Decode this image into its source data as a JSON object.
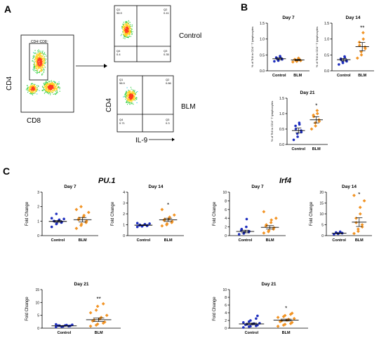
{
  "panel_labels": {
    "a": "A",
    "b": "B",
    "c": "C"
  },
  "flow": {
    "gate_label": "CD4⁺CD8⁻",
    "main_y": "CD4",
    "main_x": "CD8",
    "plot_y": "CD4",
    "plot_x": "IL-9",
    "control_label": "Control",
    "blm_label": "BLM",
    "control_quads": {
      "q1": "Q1",
      "q1v": "98.9",
      "q2": "Q2",
      "q2v": "0.41",
      "q4": "Q4",
      "q4v": "0.4",
      "q3": "Q3",
      "q3v": "0.35"
    },
    "blm_quads": {
      "q1": "Q1",
      "q1v": "98.9",
      "q2": "Q2",
      "q2v": "0.86",
      "q4": "Q4",
      "q4v": "0.71",
      "q3": "Q3",
      "q3v": "0.3"
    }
  },
  "section_c_titles": {
    "left": "PU.1",
    "right": "Irf4"
  },
  "chart_data": [
    {
      "id": "b1",
      "type": "scatter",
      "title": "Day 7",
      "ylabel": "% of Th9 in CD4⁺ T lymphocytes",
      "ylim": [
        0,
        1.5
      ],
      "yticks": [
        "0.0",
        "0.5",
        "1.0",
        "1.5"
      ],
      "categories": [
        "Control",
        "BLM"
      ],
      "series": [
        {
          "name": "Control",
          "values": [
            0.3,
            0.32,
            0.34,
            0.36,
            0.38,
            0.4,
            0.42,
            0.44,
            0.46
          ]
        },
        {
          "name": "BLM",
          "values": [
            0.28,
            0.3,
            0.3,
            0.32,
            0.33,
            0.35,
            0.36,
            0.38,
            0.4
          ]
        }
      ],
      "means": [
        0.38,
        0.34
      ],
      "sem": [
        0.03,
        0.02
      ],
      "significance": ""
    },
    {
      "id": "b2",
      "type": "scatter",
      "title": "Day 14",
      "ylabel": "% of Th9 in CD4⁺ T lymphocytes",
      "ylim": [
        0,
        1.5
      ],
      "yticks": [
        "0.0",
        "0.5",
        "1.0",
        "1.5"
      ],
      "categories": [
        "Control",
        "BLM"
      ],
      "series": [
        {
          "name": "Control",
          "values": [
            0.2,
            0.25,
            0.28,
            0.3,
            0.33,
            0.35,
            0.38,
            0.42,
            0.45
          ]
        },
        {
          "name": "BLM",
          "values": [
            0.4,
            0.5,
            0.6,
            0.7,
            0.75,
            0.8,
            0.9,
            1.0,
            1.2
          ]
        }
      ],
      "means": [
        0.35,
        0.76
      ],
      "sem": [
        0.04,
        0.13
      ],
      "significance": "**"
    },
    {
      "id": "b3",
      "type": "scatter",
      "title": "Day 21",
      "ylabel": "% of Th9 in CD4⁺ T lymphocytes",
      "ylim": [
        0,
        1.5
      ],
      "yticks": [
        "0.0",
        "0.5",
        "1.0",
        "1.5"
      ],
      "categories": [
        "Control",
        "BLM"
      ],
      "series": [
        {
          "name": "Control",
          "values": [
            0.15,
            0.25,
            0.35,
            0.4,
            0.45,
            0.5,
            0.6,
            0.65,
            0.7
          ]
        },
        {
          "name": "BLM",
          "values": [
            0.5,
            0.6,
            0.7,
            0.75,
            0.8,
            0.9,
            0.95,
            1.0,
            1.1
          ]
        }
      ],
      "means": [
        0.45,
        0.8
      ],
      "sem": [
        0.08,
        0.1
      ],
      "significance": "*"
    },
    {
      "id": "c1",
      "type": "scatter",
      "title": "Day 7",
      "ylabel": "Fold Change",
      "ylim": [
        0,
        3
      ],
      "yticks": [
        "0",
        "1",
        "2",
        "3"
      ],
      "categories": [
        "Control",
        "BLM"
      ],
      "series": [
        {
          "name": "Control",
          "values": [
            0.6,
            0.8,
            0.85,
            0.9,
            0.95,
            1.0,
            1.0,
            1.05,
            1.1,
            1.15,
            1.2,
            1.5
          ]
        },
        {
          "name": "BLM",
          "values": [
            0.5,
            0.7,
            0.8,
            0.9,
            1.0,
            1.1,
            1.2,
            1.3,
            1.4,
            1.6,
            1.8,
            2.0
          ]
        }
      ],
      "means": [
        0.98,
        1.1
      ],
      "sem": [
        0.06,
        0.15
      ],
      "significance": ""
    },
    {
      "id": "c2",
      "type": "scatter",
      "title": "Day 14",
      "ylabel": "Fold Change",
      "ylim": [
        0,
        4
      ],
      "yticks": [
        "0",
        "1",
        "2",
        "3",
        "4"
      ],
      "categories": [
        "Control",
        "BLM"
      ],
      "series": [
        {
          "name": "Control",
          "values": [
            0.8,
            0.85,
            0.9,
            0.9,
            0.95,
            0.95,
            1.0,
            1.0,
            1.05,
            1.1,
            1.15
          ]
        },
        {
          "name": "BLM",
          "values": [
            0.9,
            1.0,
            1.1,
            1.2,
            1.3,
            1.4,
            1.5,
            1.6,
            1.7,
            1.9,
            2.4
          ]
        }
      ],
      "means": [
        0.96,
        1.45
      ],
      "sem": [
        0.03,
        0.15
      ],
      "significance": "*"
    },
    {
      "id": "c3",
      "type": "scatter",
      "title": "Day 7",
      "ylabel": "Fold Change",
      "ylim": [
        0,
        10
      ],
      "yticks": [
        "0",
        "2",
        "4",
        "6",
        "8",
        "10"
      ],
      "categories": [
        "Control",
        "BLM"
      ],
      "series": [
        {
          "name": "Control",
          "values": [
            0.3,
            0.5,
            0.7,
            0.8,
            1.0,
            1.2,
            1.5,
            2.0,
            3.8
          ]
        },
        {
          "name": "BLM",
          "values": [
            0.6,
            0.9,
            1.2,
            1.5,
            1.8,
            2.2,
            2.5,
            3.0,
            3.6,
            4.0,
            5.5
          ]
        }
      ],
      "means": [
        0.95,
        1.9
      ],
      "sem": [
        0.3,
        0.4
      ],
      "significance": ""
    },
    {
      "id": "c4",
      "type": "scatter",
      "title": "Day 14",
      "ylabel": "Fold Change",
      "ylim": [
        0,
        20
      ],
      "yticks": [
        "0",
        "5",
        "10",
        "15",
        "20"
      ],
      "categories": [
        "Control",
        "BLM"
      ],
      "series": [
        {
          "name": "Control",
          "values": [
            0.6,
            0.8,
            1.0,
            1.1,
            1.2,
            1.3,
            1.5,
            1.8
          ]
        },
        {
          "name": "BLM",
          "values": [
            1.0,
            2.0,
            3.0,
            4.0,
            5.0,
            6.0,
            8.0,
            10.0,
            13.0,
            16.0,
            18.5
          ]
        }
      ],
      "means": [
        1.1,
        6.2
      ],
      "sem": [
        0.15,
        2.0
      ],
      "significance": "*"
    },
    {
      "id": "c5",
      "type": "scatter",
      "title": "Day 21",
      "ylabel": "Fold Change",
      "ylim": [
        0,
        15
      ],
      "yticks": [
        "0",
        "5",
        "10",
        "15"
      ],
      "categories": [
        "Control",
        "BLM"
      ],
      "series": [
        {
          "name": "Control",
          "values": [
            0.5,
            0.6,
            0.7,
            0.8,
            0.9,
            1.0,
            1.0,
            1.1,
            1.2,
            1.3,
            1.5
          ]
        },
        {
          "name": "BLM",
          "values": [
            0.8,
            1.2,
            1.6,
            2.0,
            2.4,
            2.8,
            3.2,
            3.6,
            4.2,
            5.0,
            6.0,
            7.0,
            8.5,
            9.5
          ]
        }
      ],
      "means": [
        0.9,
        3.3
      ],
      "sem": [
        0.1,
        0.7
      ],
      "significance": "**"
    },
    {
      "id": "c6",
      "type": "scatter",
      "title": "Day 21",
      "ylabel": "Fold Change",
      "ylim": [
        0,
        10
      ],
      "yticks": [
        "0",
        "2",
        "4",
        "6",
        "8",
        "10"
      ],
      "categories": [
        "Control",
        "BLM"
      ],
      "series": [
        {
          "name": "Control",
          "values": [
            0.2,
            0.4,
            0.5,
            0.6,
            0.8,
            0.9,
            1.0,
            1.1,
            1.2,
            1.3,
            1.5,
            1.7,
            2.0,
            2.5,
            3.2
          ]
        },
        {
          "name": "BLM",
          "values": [
            0.5,
            0.8,
            1.0,
            1.2,
            1.5,
            1.7,
            1.9,
            2.1,
            2.3,
            2.5,
            2.8,
            3.0,
            3.3,
            3.6,
            3.9
          ]
        }
      ],
      "means": [
        1.1,
        2.1
      ],
      "sem": [
        0.2,
        0.25
      ],
      "significance": "*"
    }
  ],
  "colors": {
    "control": "#1f2fbf",
    "blm": "#f29425",
    "axis": "#000000"
  }
}
